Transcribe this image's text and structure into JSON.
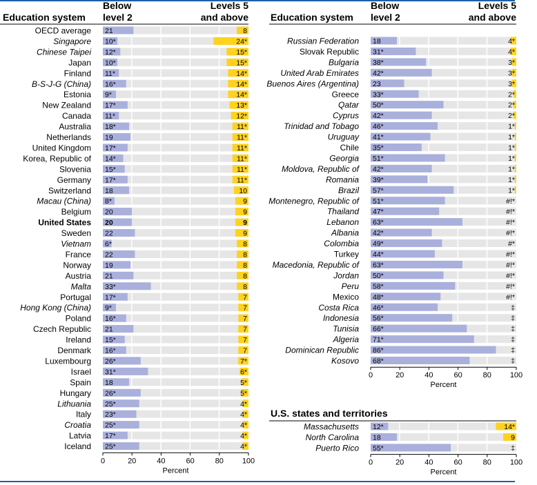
{
  "colors": {
    "below": "#aab0dc",
    "bg": "#e6e6e6",
    "top": "#ffd21e",
    "rule": "#1f5fa6",
    "grid": "#ffffff"
  },
  "chart_data": [
    {
      "type": "bar",
      "title": "",
      "column_headers": {
        "system": "Education system",
        "below": [
          "Below",
          "level 2"
        ],
        "top": [
          "Levels 5",
          "and above"
        ]
      },
      "xlabel": "Percent",
      "ticks": [
        0,
        20,
        40,
        60,
        80,
        100
      ],
      "xlim": [
        0,
        100
      ],
      "rows": [
        {
          "name": "OECD average",
          "style": "normal",
          "below": 21,
          "below_label": "21",
          "top": 8,
          "top_label": "8"
        },
        {
          "name": "Singapore",
          "style": "italic",
          "below": 10,
          "below_label": "10*",
          "top": 24,
          "top_label": "24*"
        },
        {
          "name": "Chinese Taipei",
          "style": "italic",
          "below": 12,
          "below_label": "12*",
          "top": 15,
          "top_label": "15*"
        },
        {
          "name": "Japan",
          "style": "normal",
          "below": 10,
          "below_label": "10*",
          "top": 15,
          "top_label": "15*"
        },
        {
          "name": "Finland",
          "style": "normal",
          "below": 11,
          "below_label": "11*",
          "top": 14,
          "top_label": "14*"
        },
        {
          "name": "B-S-J-G (China)",
          "style": "italic",
          "below": 16,
          "below_label": "16*",
          "top": 14,
          "top_label": "14*"
        },
        {
          "name": "Estonia",
          "style": "normal",
          "below": 9,
          "below_label": "9*",
          "top": 14,
          "top_label": "14*"
        },
        {
          "name": "New Zealand",
          "style": "normal",
          "below": 17,
          "below_label": "17*",
          "top": 13,
          "top_label": "13*"
        },
        {
          "name": "Canada",
          "style": "normal",
          "below": 11,
          "below_label": "11*",
          "top": 12,
          "top_label": "12*"
        },
        {
          "name": "Australia",
          "style": "normal",
          "below": 18,
          "below_label": "18*",
          "top": 11,
          "top_label": "11*"
        },
        {
          "name": "Netherlands",
          "style": "normal",
          "below": 19,
          "below_label": "19",
          "top": 11,
          "top_label": "11*"
        },
        {
          "name": "United Kingdom",
          "style": "normal",
          "below": 17,
          "below_label": "17*",
          "top": 11,
          "top_label": "11*"
        },
        {
          "name": "Korea, Republic of",
          "style": "normal",
          "below": 14,
          "below_label": "14*",
          "top": 11,
          "top_label": "11*"
        },
        {
          "name": "Slovenia",
          "style": "normal",
          "below": 15,
          "below_label": "15*",
          "top": 11,
          "top_label": "11*"
        },
        {
          "name": "Germany",
          "style": "normal",
          "below": 17,
          "below_label": "17*",
          "top": 11,
          "top_label": "11*"
        },
        {
          "name": "Switzerland",
          "style": "normal",
          "below": 18,
          "below_label": "18",
          "top": 10,
          "top_label": "10"
        },
        {
          "name": "Macau (China)",
          "style": "italic",
          "below": 8,
          "below_label": "8*",
          "top": 9,
          "top_label": "9"
        },
        {
          "name": "Belgium",
          "style": "normal",
          "below": 20,
          "below_label": "20",
          "top": 9,
          "top_label": "9"
        },
        {
          "name": "United States",
          "style": "bold",
          "below": 20,
          "below_label": "20",
          "top": 9,
          "top_label": "9"
        },
        {
          "name": "Sweden",
          "style": "normal",
          "below": 22,
          "below_label": "22",
          "top": 9,
          "top_label": "9"
        },
        {
          "name": "Vietnam",
          "style": "italic",
          "below": 6,
          "below_label": "6*",
          "top": 8,
          "top_label": "8"
        },
        {
          "name": "France",
          "style": "normal",
          "below": 22,
          "below_label": "22",
          "top": 8,
          "top_label": "8"
        },
        {
          "name": "Norway",
          "style": "normal",
          "below": 19,
          "below_label": "19",
          "top": 8,
          "top_label": "8"
        },
        {
          "name": "Austria",
          "style": "normal",
          "below": 21,
          "below_label": "21",
          "top": 8,
          "top_label": "8"
        },
        {
          "name": "Malta",
          "style": "italic",
          "below": 33,
          "below_label": "33*",
          "top": 8,
          "top_label": "8"
        },
        {
          "name": "Portugal",
          "style": "normal",
          "below": 17,
          "below_label": "17*",
          "top": 7,
          "top_label": "7"
        },
        {
          "name": "Hong Kong (China)",
          "style": "italic",
          "below": 9,
          "below_label": "9*",
          "top": 7,
          "top_label": "7"
        },
        {
          "name": "Poland",
          "style": "normal",
          "below": 16,
          "below_label": "16*",
          "top": 7,
          "top_label": "7"
        },
        {
          "name": "Czech Republic",
          "style": "normal",
          "below": 21,
          "below_label": "21",
          "top": 7,
          "top_label": "7"
        },
        {
          "name": "Ireland",
          "style": "normal",
          "below": 15,
          "below_label": "15*",
          "top": 7,
          "top_label": "7"
        },
        {
          "name": "Denmark",
          "style": "normal",
          "below": 16,
          "below_label": "16*",
          "top": 7,
          "top_label": "7"
        },
        {
          "name": "Luxembourg",
          "style": "normal",
          "below": 26,
          "below_label": "26*",
          "top": 7,
          "top_label": "7*"
        },
        {
          "name": "Israel",
          "style": "normal",
          "below": 31,
          "below_label": "31*",
          "top": 6,
          "top_label": "6*"
        },
        {
          "name": "Spain",
          "style": "normal",
          "below": 18,
          "below_label": "18",
          "top": 5,
          "top_label": "5*"
        },
        {
          "name": "Hungary",
          "style": "normal",
          "below": 26,
          "below_label": "26*",
          "top": 5,
          "top_label": "5*"
        },
        {
          "name": "Lithuania",
          "style": "italic",
          "below": 25,
          "below_label": "25*",
          "top": 4,
          "top_label": "4*"
        },
        {
          "name": "Italy",
          "style": "normal",
          "below": 23,
          "below_label": "23*",
          "top": 4,
          "top_label": "4*"
        },
        {
          "name": "Croatia",
          "style": "italic",
          "below": 25,
          "below_label": "25*",
          "top": 4,
          "top_label": "4*"
        },
        {
          "name": "Latvia",
          "style": "normal",
          "below": 17,
          "below_label": "17*",
          "top": 4,
          "top_label": "4*"
        },
        {
          "name": "Iceland",
          "style": "normal",
          "below": 25,
          "below_label": "25*",
          "top": 4,
          "top_label": "4*"
        }
      ]
    },
    {
      "type": "bar",
      "title": "",
      "column_headers": {
        "system": "Education system",
        "below": [
          "Below",
          "level 2"
        ],
        "top": [
          "Levels 5",
          "and above"
        ]
      },
      "xlabel": "Percent",
      "ticks": [
        0,
        20,
        40,
        60,
        80,
        100
      ],
      "xlim": [
        0,
        100
      ],
      "rows": [
        {
          "name": "Russian Federation",
          "style": "italic",
          "below": 18,
          "below_label": "18",
          "top": 4,
          "top_label": "4*"
        },
        {
          "name": "Slovak Republic",
          "style": "normal",
          "below": 31,
          "below_label": "31*",
          "top": 4,
          "top_label": "4*"
        },
        {
          "name": "Bulgaria",
          "style": "italic",
          "below": 38,
          "below_label": "38*",
          "top": 3,
          "top_label": "3*"
        },
        {
          "name": "United Arab Emirates",
          "style": "italic",
          "below": 42,
          "below_label": "42*",
          "top": 3,
          "top_label": "3*"
        },
        {
          "name": "Buenos Aires (Argentina)",
          "style": "italic",
          "below": 23,
          "below_label": "23",
          "top": 3,
          "top_label": "3*"
        },
        {
          "name": "Greece",
          "style": "normal",
          "below": 33,
          "below_label": "33*",
          "top": 2,
          "top_label": "2*"
        },
        {
          "name": "Qatar",
          "style": "italic",
          "below": 50,
          "below_label": "50*",
          "top": 2,
          "top_label": "2*"
        },
        {
          "name": "Cyprus",
          "style": "italic",
          "below": 42,
          "below_label": "42*",
          "top": 2,
          "top_label": "2*"
        },
        {
          "name": "Trinidad and Tobago",
          "style": "italic",
          "below": 46,
          "below_label": "46*",
          "top": 1,
          "top_label": "1*"
        },
        {
          "name": "Uruguay",
          "style": "italic",
          "below": 41,
          "below_label": "41*",
          "top": 1,
          "top_label": "1*"
        },
        {
          "name": "Chile",
          "style": "normal",
          "below": 35,
          "below_label": "35*",
          "top": 1,
          "top_label": "1*"
        },
        {
          "name": "Georgia",
          "style": "italic",
          "below": 51,
          "below_label": "51*",
          "top": 1,
          "top_label": "1*"
        },
        {
          "name": "Moldova, Republic of",
          "style": "italic",
          "below": 42,
          "below_label": "42*",
          "top": 1,
          "top_label": "1*"
        },
        {
          "name": "Romania",
          "style": "italic",
          "below": 39,
          "below_label": "39*",
          "top": 1,
          "top_label": "1*"
        },
        {
          "name": "Brazil",
          "style": "italic",
          "below": 57,
          "below_label": "57*",
          "top": 1,
          "top_label": "1*"
        },
        {
          "name": "Montenegro, Republic of",
          "style": "italic",
          "below": 51,
          "below_label": "51*",
          "top": 0,
          "top_label": "#!*"
        },
        {
          "name": "Thailand",
          "style": "italic",
          "below": 47,
          "below_label": "47*",
          "top": 0,
          "top_label": "#!*"
        },
        {
          "name": "Lebanon",
          "style": "italic",
          "below": 63,
          "below_label": "63*",
          "top": 0,
          "top_label": "#!*"
        },
        {
          "name": "Albania",
          "style": "italic",
          "below": 42,
          "below_label": "42*",
          "top": 0,
          "top_label": "#!*"
        },
        {
          "name": "Colombia",
          "style": "italic",
          "below": 49,
          "below_label": "49*",
          "top": 0,
          "top_label": "#*"
        },
        {
          "name": "Turkey",
          "style": "normal",
          "below": 44,
          "below_label": "44*",
          "top": 0,
          "top_label": "#!*"
        },
        {
          "name": "Macedonia, Republic of",
          "style": "italic",
          "below": 63,
          "below_label": "63*",
          "top": 0,
          "top_label": "#!*"
        },
        {
          "name": "Jordan",
          "style": "italic",
          "below": 50,
          "below_label": "50*",
          "top": 0,
          "top_label": "#!*"
        },
        {
          "name": "Peru",
          "style": "italic",
          "below": 58,
          "below_label": "58*",
          "top": 0,
          "top_label": "#!*"
        },
        {
          "name": "Mexico",
          "style": "normal",
          "below": 48,
          "below_label": "48*",
          "top": 0,
          "top_label": "#!*"
        },
        {
          "name": "Costa Rica",
          "style": "italic",
          "below": 46,
          "below_label": "46*",
          "top": 0,
          "top_label": "‡"
        },
        {
          "name": "Indonesia",
          "style": "italic",
          "below": 56,
          "below_label": "56*",
          "top": 0,
          "top_label": "‡"
        },
        {
          "name": "Tunisia",
          "style": "italic",
          "below": 66,
          "below_label": "66*",
          "top": 0,
          "top_label": "‡"
        },
        {
          "name": "Algeria",
          "style": "italic",
          "below": 71,
          "below_label": "71*",
          "top": 0,
          "top_label": "‡"
        },
        {
          "name": "Dominican Republic",
          "style": "italic",
          "below": 86,
          "below_label": "86*",
          "top": 0,
          "top_label": "‡"
        },
        {
          "name": "Kosovo",
          "style": "italic",
          "below": 68,
          "below_label": "68*",
          "top": 0,
          "top_label": "‡"
        }
      ]
    },
    {
      "type": "bar",
      "title": "U.S. states and territories",
      "xlabel": "Percent",
      "ticks": [
        0,
        20,
        40,
        60,
        80,
        100
      ],
      "xlim": [
        0,
        100
      ],
      "rows": [
        {
          "name": "Massachusetts",
          "style": "italic",
          "below": 12,
          "below_label": "12*",
          "top": 14,
          "top_label": "14*"
        },
        {
          "name": "North Carolina",
          "style": "italic",
          "below": 18,
          "below_label": "18",
          "top": 9,
          "top_label": "9"
        },
        {
          "name": "Puerto Rico",
          "style": "italic",
          "below": 55,
          "below_label": "55*",
          "top": 0,
          "top_label": "‡"
        }
      ]
    }
  ]
}
